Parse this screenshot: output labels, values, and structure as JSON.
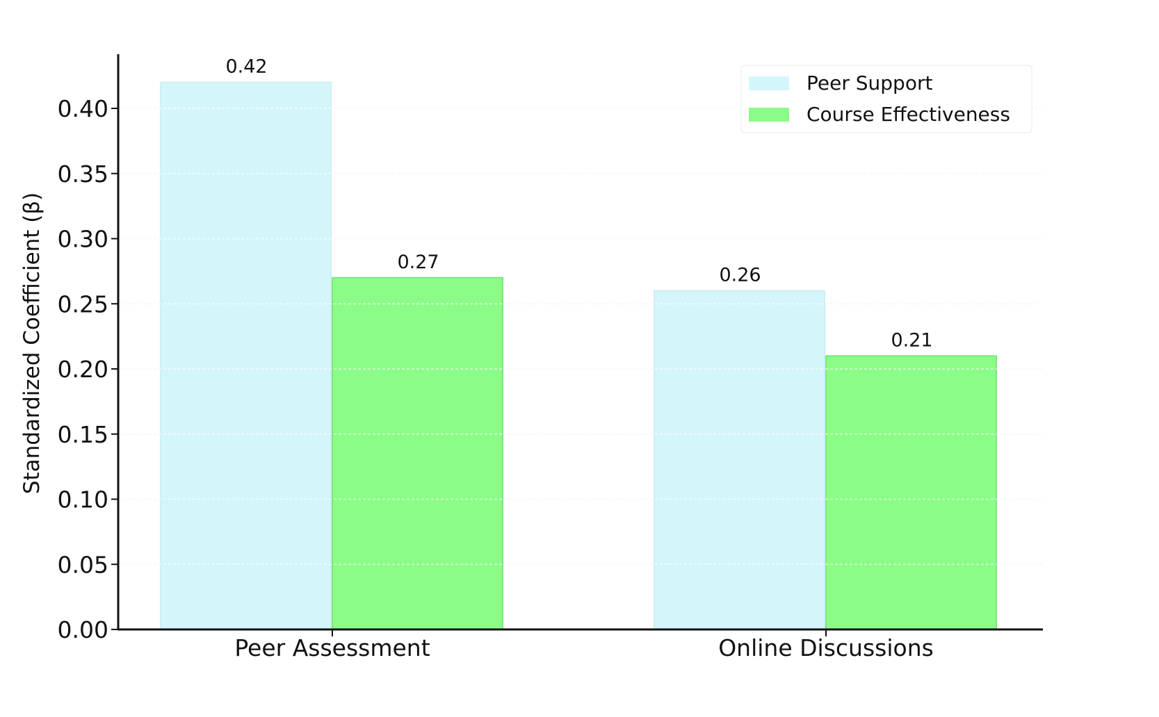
{
  "chart_data": {
    "type": "bar",
    "title": "",
    "xlabel": "",
    "ylabel": "Standardized Coefficient (β)",
    "categories": [
      "Peer Assessment",
      "Online Discussions"
    ],
    "series": [
      {
        "name": "Peer Support",
        "values": [
          0.42,
          0.26
        ],
        "color": "#d4f6fa"
      },
      {
        "name": "Course Effectiveness",
        "values": [
          0.27,
          0.21
        ],
        "color": "#8cfc88"
      }
    ],
    "data_labels": [
      [
        "0.42",
        "0.26"
      ],
      [
        "0.27",
        "0.21"
      ]
    ],
    "ylim": [
      0,
      0.44
    ],
    "yticks": [
      "0.00",
      "0.05",
      "0.10",
      "0.15",
      "0.20",
      "0.25",
      "0.30",
      "0.35",
      "0.40"
    ],
    "grid": true,
    "legend_position": "top-right"
  }
}
